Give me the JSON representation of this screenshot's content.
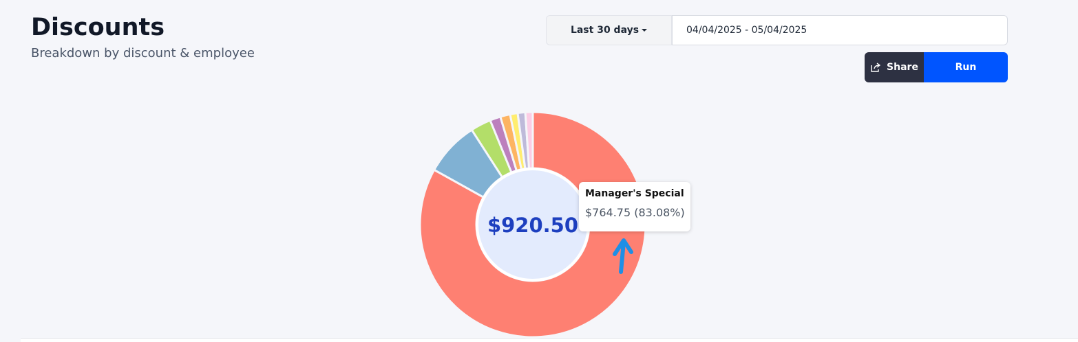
{
  "header": {
    "title": "Discounts",
    "subtitle": "Breakdown by discount & employee"
  },
  "controls": {
    "range": "Last 30 days",
    "dates": "04/04/2025 - 05/04/2025",
    "share": "Share",
    "run": "Run"
  },
  "chart_data": {
    "type": "pie",
    "donut": true,
    "center_label": "$920.50",
    "categories": [
      "Manager's Special",
      null,
      null,
      null,
      null,
      null,
      null,
      null
    ],
    "values": [
      764.75,
      72,
      27,
      14,
      13,
      10,
      10,
      9.75
    ],
    "value_labels": [
      "$764.75 (83.08%)",
      null,
      null,
      null,
      null,
      null,
      null,
      null
    ],
    "colors": [
      "#fe8072",
      "#80b1d3",
      "#b3de69",
      "#bc80bd",
      "#fdb462",
      "#ffed6f",
      "#bebada",
      "#fccde5"
    ]
  }
}
